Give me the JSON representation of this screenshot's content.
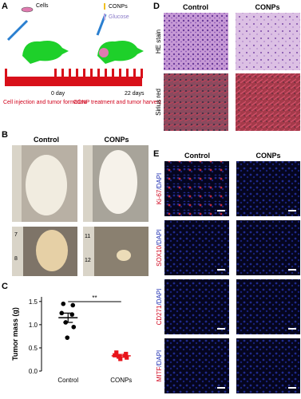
{
  "panel_labels": [
    "A",
    "B",
    "C",
    "D",
    "E"
  ],
  "schematic": {
    "cells": "Cells",
    "conps": "CONPs",
    "glucose": "Glucose",
    "start": "0 day",
    "end": "22 days",
    "phase1": "Cell injection and tumor formation",
    "phase2": "CONP treatment and tumor harvest"
  },
  "photos": {
    "columns": [
      "Control",
      "CONPs"
    ],
    "ruler": [
      "7",
      "8",
      "11",
      "12"
    ]
  },
  "histology": {
    "columns": [
      "Control",
      "CONPs"
    ],
    "rows": [
      "HE stain",
      "Sirius red"
    ]
  },
  "fluorescence": {
    "columns": [
      "Control",
      "CONPs"
    ],
    "rows": [
      {
        "marker": "Ki-67",
        "counterstain": "/DAPI"
      },
      {
        "marker": "SOX10",
        "counterstain": "/DAPI"
      },
      {
        "marker": "CD271",
        "counterstain": "/DAPI"
      },
      {
        "marker": "MITF",
        "counterstain": "/DAPI"
      }
    ]
  },
  "chart_data": {
    "type": "scatter",
    "ylabel": "Tumor mass (g)",
    "categories": [
      "Control",
      "CONPs"
    ],
    "ylim": [
      0,
      1.6
    ],
    "yticks": [
      {
        "value": 0,
        "label": "0.0"
      },
      {
        "value": 0.5,
        "label": "0.5"
      },
      {
        "value": 1,
        "label": "1.0"
      },
      {
        "value": 1.5,
        "label": "1.5"
      }
    ],
    "series": [
      {
        "color": "#000000",
        "marker": "circle",
        "values": [
          1.45,
          1.42,
          1.25,
          1.22,
          1.05,
          0.95,
          0.72
        ],
        "mean": 1.15,
        "sem": 0.1
      },
      {
        "color": "#e8141b",
        "marker": "square",
        "values": [
          0.4,
          0.37,
          0.34,
          0.33,
          0.31,
          0.29,
          0.26
        ],
        "mean": 0.33,
        "sem": 0.03
      }
    ],
    "annotation": "**"
  }
}
